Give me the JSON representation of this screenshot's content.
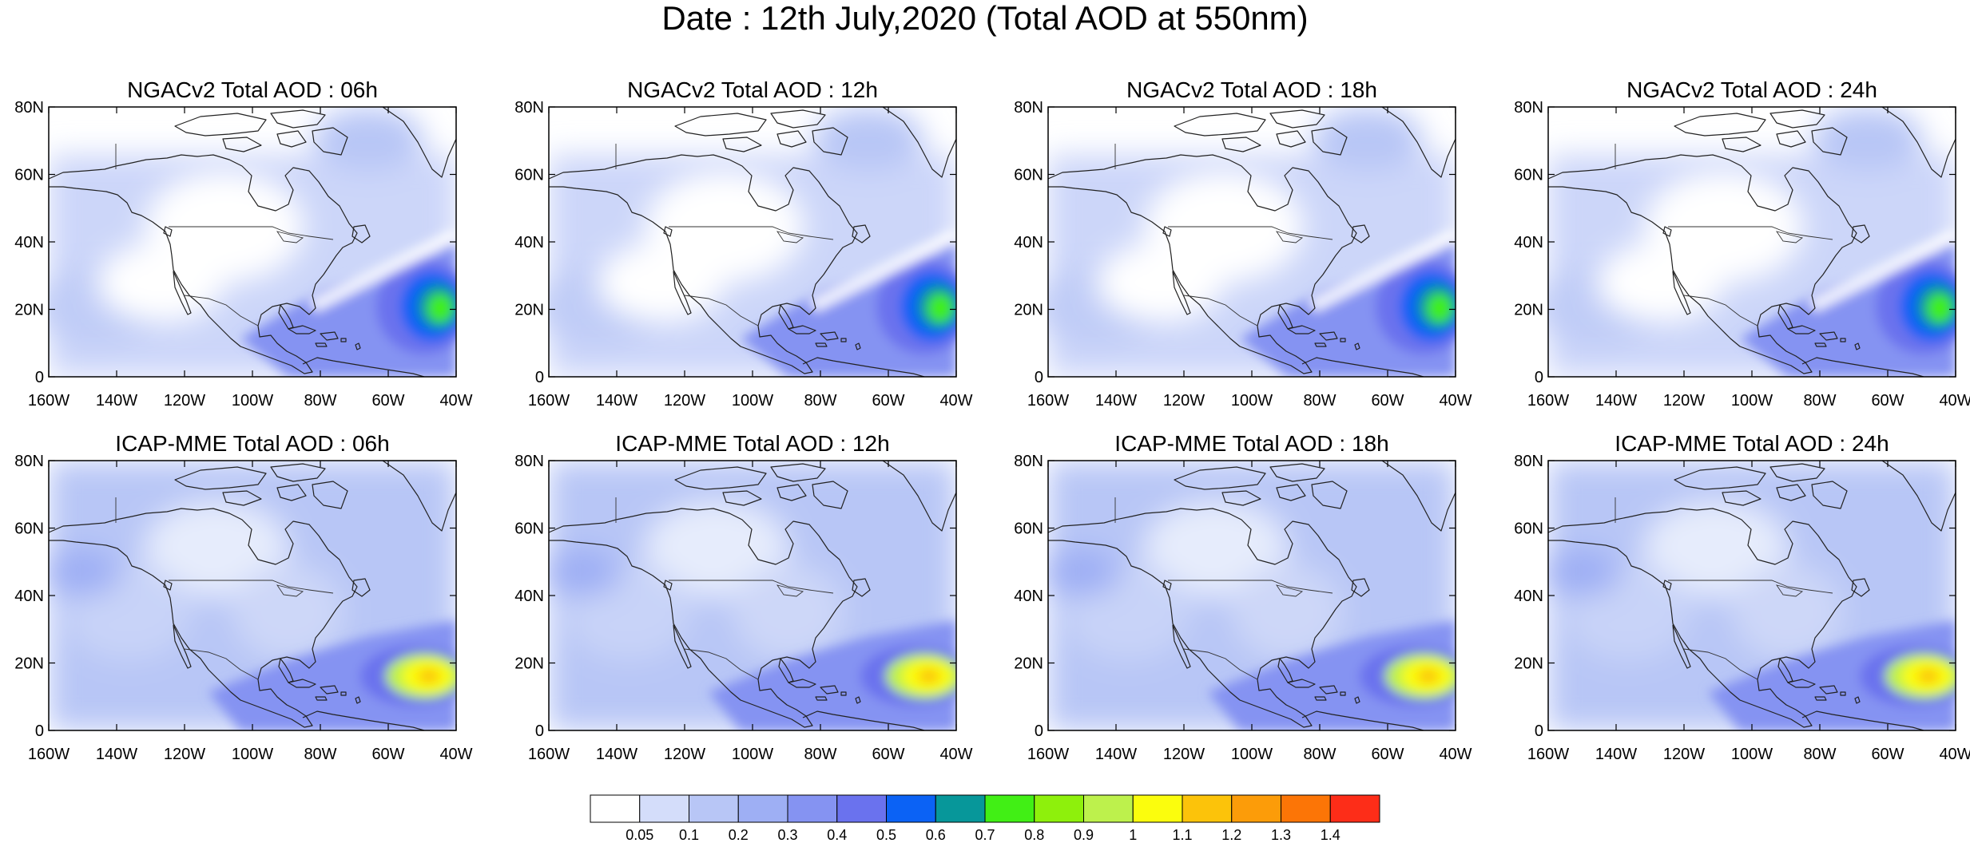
{
  "figure": {
    "title": "Date : 12th July,2020 (Total AOD at 550nm)"
  },
  "chart_data": [
    {
      "type": "heatmap",
      "title": "NGACv2 Total AOD : 06h",
      "model": "NGACv2",
      "forecast_hour": "06h",
      "xlim": [
        -160,
        -40
      ],
      "ylim": [
        0,
        80
      ]
    },
    {
      "type": "heatmap",
      "title": "NGACv2 Total AOD : 12h",
      "model": "NGACv2",
      "forecast_hour": "12h",
      "xlim": [
        -160,
        -40
      ],
      "ylim": [
        0,
        80
      ]
    },
    {
      "type": "heatmap",
      "title": "NGACv2 Total AOD : 18h",
      "model": "NGACv2",
      "forecast_hour": "18h",
      "xlim": [
        -160,
        -40
      ],
      "ylim": [
        0,
        80
      ]
    },
    {
      "type": "heatmap",
      "title": "NGACv2 Total AOD : 24h",
      "model": "NGACv2",
      "forecast_hour": "24h",
      "xlim": [
        -160,
        -40
      ],
      "ylim": [
        0,
        80
      ]
    },
    {
      "type": "heatmap",
      "title": "ICAP-MME Total AOD : 06h",
      "model": "ICAP-MME",
      "forecast_hour": "06h",
      "xlim": [
        -160,
        -40
      ],
      "ylim": [
        0,
        80
      ]
    },
    {
      "type": "heatmap",
      "title": "ICAP-MME Total AOD : 12h",
      "model": "ICAP-MME",
      "forecast_hour": "12h",
      "xlim": [
        -160,
        -40
      ],
      "ylim": [
        0,
        80
      ]
    },
    {
      "type": "heatmap",
      "title": "ICAP-MME Total AOD : 18h",
      "model": "ICAP-MME",
      "forecast_hour": "18h",
      "xlim": [
        -160,
        -40
      ],
      "ylim": [
        0,
        80
      ]
    },
    {
      "type": "heatmap",
      "title": "ICAP-MME Total AOD : 24h",
      "model": "ICAP-MME",
      "forecast_hour": "24h",
      "xlim": [
        -160,
        -40
      ],
      "ylim": [
        0,
        80
      ]
    }
  ],
  "axes": {
    "x_ticks": [
      "160W",
      "140W",
      "120W",
      "100W",
      "80W",
      "60W",
      "40W"
    ],
    "y_ticks": [
      "0",
      "20N",
      "40N",
      "60N",
      "80N"
    ]
  },
  "colorbar": {
    "levels": [
      "0.05",
      "0.1",
      "0.2",
      "0.3",
      "0.4",
      "0.5",
      "0.6",
      "0.7",
      "0.8",
      "0.9",
      "1",
      "1.1",
      "1.2",
      "1.3",
      "1.4"
    ],
    "colors": [
      "#ffffff",
      "#d4ddfa",
      "#b8c6f6",
      "#9eaff4",
      "#8593f2",
      "#6a72ee",
      "#0b62f5",
      "#07979a",
      "#41ef15",
      "#8ef00c",
      "#bdf14c",
      "#fbfd0d",
      "#fcc30a",
      "#fc9c09",
      "#fc7506",
      "#fd2d18"
    ]
  }
}
